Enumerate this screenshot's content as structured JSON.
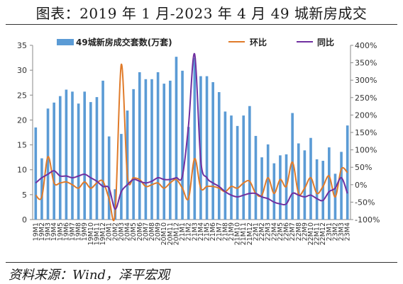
{
  "title": "图表：2019 年 1 月-2023 年 4 月 49 城新房成交",
  "source": "资料来源：Wind，泽平宏观",
  "chart_data": {
    "type": "bar+line",
    "x": [
      "19M1",
      "19M2",
      "19M3",
      "19M4",
      "19M5",
      "19M6",
      "19M7",
      "19M8",
      "19M9",
      "19M10",
      "19M11",
      "19M12",
      "20M1",
      "20M2",
      "20M3",
      "20M4",
      "20M5",
      "20M6",
      "20M7",
      "20M8",
      "20M9",
      "20M10",
      "20M11",
      "20M12",
      "21M1",
      "21M2",
      "21M3",
      "21M4",
      "21M5",
      "21M6",
      "21M7",
      "21M8",
      "21M9",
      "21M10",
      "21M11",
      "21M12",
      "22M1",
      "22M2",
      "22M3",
      "22M4",
      "22M5",
      "22M6",
      "22M7",
      "22M8",
      "22M9",
      "22M10",
      "22M11",
      "22M12",
      "23M1",
      "23M2",
      "23M3",
      "23M4"
    ],
    "x_tick_labels": [
      "19M1",
      "19M2",
      "19M3",
      "19M4",
      "19M5",
      "19M6",
      "19M7",
      "19M8",
      "19M9",
      "19M10",
      "19M11",
      "19M12",
      "20M1",
      "20M2",
      "20M3",
      "20M4",
      "20M5",
      "20M6",
      "20M7",
      "20M8",
      "20M9",
      "20M10",
      "20M11",
      "20M12",
      "21M1",
      "21M2",
      "21M3",
      "21M4",
      "21M5",
      "21M6",
      "21M7",
      "21M8",
      "21M9",
      "21M10",
      "21M11",
      "21M12",
      "22M1",
      "22M2",
      "22M3",
      "22M4",
      "22M5",
      "22M6",
      "22M7",
      "22M8",
      "22M9",
      "22M10",
      "22M11",
      "22M12",
      "23M1",
      "23M2",
      "23M3",
      "23M4"
    ],
    "series": [
      {
        "name": "49城新房成交套数(万套)",
        "type": "bar",
        "axis": "left",
        "color": "#5b9bd5",
        "values": [
          18.5,
          12.3,
          22.3,
          23.5,
          24.8,
          26.1,
          25.7,
          23.3,
          25.7,
          23.6,
          24.6,
          27.9,
          16.7,
          6.1,
          17.2,
          21.9,
          26.2,
          29.6,
          28.2,
          28.2,
          29.6,
          27.3,
          27.9,
          32.7,
          29.9,
          18.6,
          32.5,
          28.8,
          28.8,
          27.6,
          25.6,
          21.7,
          20.9,
          18.8,
          20.9,
          22.8,
          16.8,
          12.5,
          15.1,
          11.3,
          12.9,
          13.1,
          21.4,
          15.3,
          13.9,
          16.4,
          12.1,
          11.8,
          14.5,
          9.2,
          13.6,
          18.9
        ]
      },
      {
        "name": "环比",
        "type": "line",
        "axis": "right",
        "color": "#e07b2a",
        "values": [
          -30,
          -35,
          80,
          5,
          5,
          8,
          0,
          -10,
          8,
          -10,
          5,
          10,
          -40,
          -80,
          345,
          25,
          20,
          15,
          -5,
          0,
          5,
          -10,
          5,
          15,
          -10,
          -40,
          75,
          -10,
          -5,
          -5,
          -10,
          -20,
          -5,
          -10,
          5,
          10,
          -25,
          -30,
          20,
          -25,
          15,
          -5,
          65,
          -25,
          -10,
          20,
          -25,
          -5,
          25,
          -35,
          45,
          35
        ]
      },
      {
        "name": "同比",
        "type": "line",
        "axis": "right",
        "color": "#7030a0",
        "values": [
          5,
          20,
          30,
          40,
          25,
          25,
          20,
          25,
          30,
          20,
          10,
          -5,
          -10,
          -70,
          -20,
          0,
          15,
          10,
          5,
          10,
          20,
          15,
          15,
          20,
          25,
          170,
          375,
          70,
          20,
          5,
          -5,
          -20,
          -30,
          -35,
          -30,
          -25,
          -25,
          -35,
          -40,
          -50,
          -55,
          -55,
          -25,
          -30,
          -35,
          -30,
          -40,
          -45,
          -20,
          -10,
          20,
          -25
        ]
      }
    ],
    "y_left": {
      "min": 0,
      "max": 35,
      "step": 5,
      "ticks": [
        "0",
        "5",
        "10",
        "15",
        "20",
        "25",
        "30",
        "35"
      ]
    },
    "y_right": {
      "min": -100,
      "max": 400,
      "step": 50,
      "ticks": [
        "-100%",
        "-50%",
        "0%",
        "50%",
        "100%",
        "150%",
        "200%",
        "250%",
        "300%",
        "350%",
        "400%"
      ]
    },
    "grid": false,
    "legend": "top",
    "colors": {
      "bar": "#5b9bd5",
      "mom": "#e07b2a",
      "yoy": "#7030a0"
    }
  }
}
